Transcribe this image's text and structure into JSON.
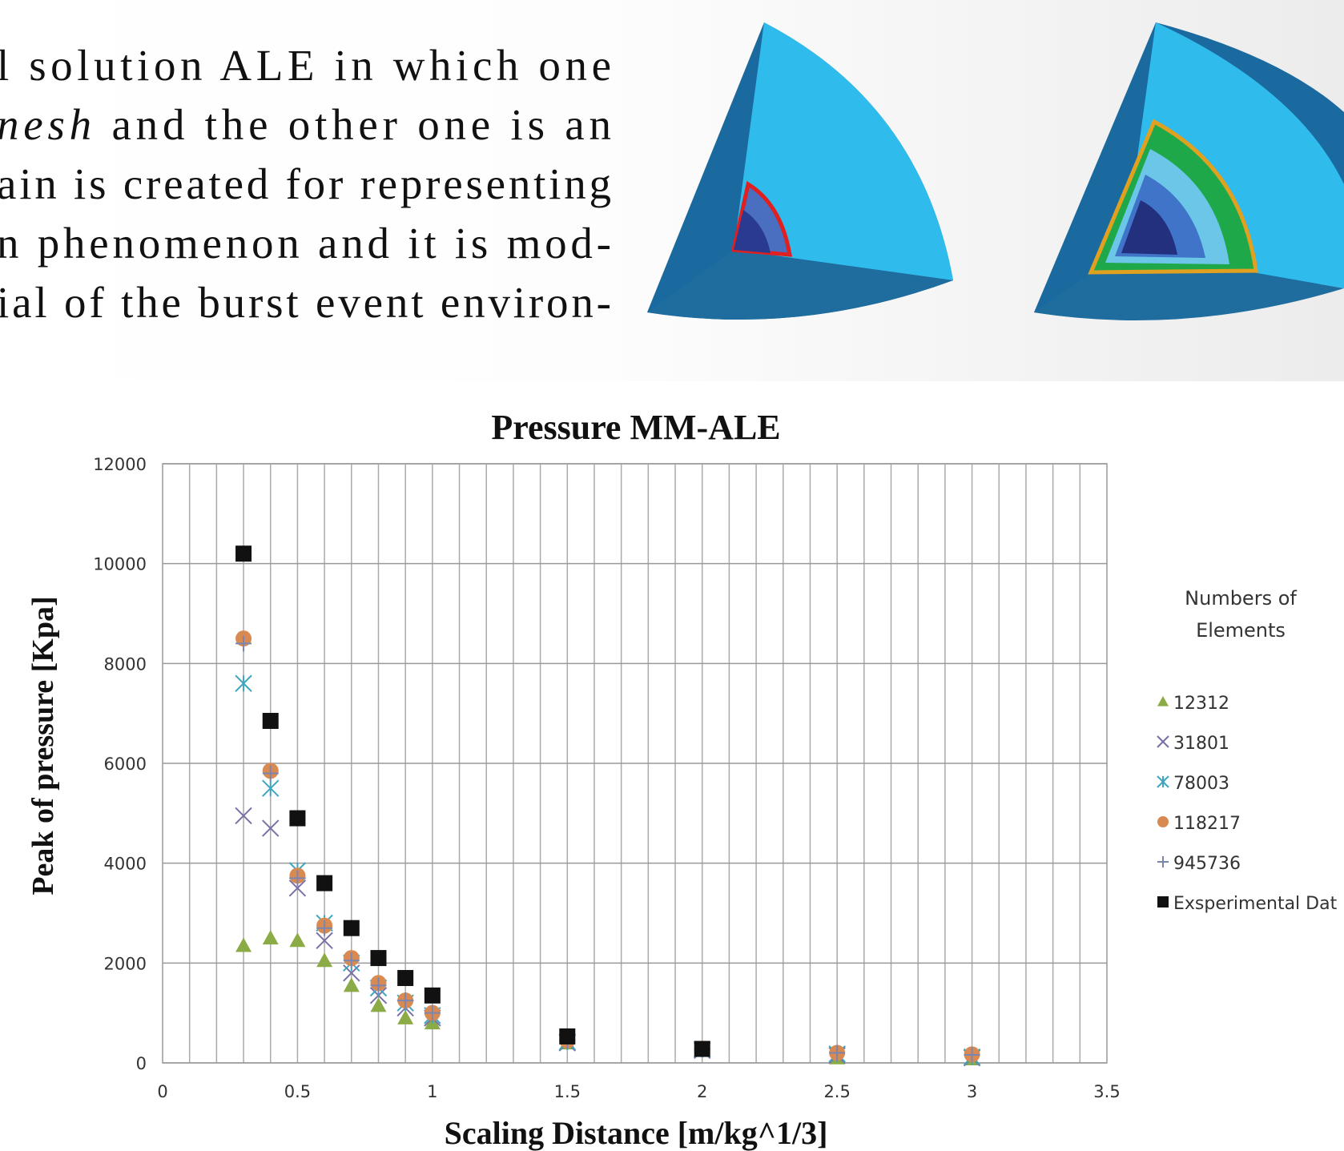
{
  "paragraph": [
    "l solution ALE in which one",
    [
      "nesh",
      " and the other one is an"
    ],
    "ain is created for representing",
    "n phenomenon and it is mod-",
    "ial of the burst event environ-"
  ],
  "chart_data": {
    "type": "scatter",
    "title": "Pressure MM-ALE",
    "x_label": "Scaling Distance [m/kg^1/3]",
    "y_label": "Peak of pressure [Kpa]",
    "xlim": [
      0,
      3.5
    ],
    "xticks": [
      0,
      0.5,
      1,
      1.5,
      2,
      2.5,
      3,
      3.5
    ],
    "xgrid": [
      0,
      0.1,
      0.2,
      0.3,
      0.4,
      0.5,
      0.6,
      0.7,
      0.8,
      0.9,
      1,
      1.1,
      1.2,
      1.3,
      1.4,
      1.5,
      1.6,
      1.7,
      1.8,
      1.9,
      2,
      2.1,
      2.2,
      2.3,
      2.4,
      2.5,
      2.6,
      2.7,
      2.8,
      2.9,
      3,
      3.1,
      3.2,
      3.3,
      3.4,
      3.5
    ],
    "ylim": [
      0,
      12000
    ],
    "yticks": [
      0,
      2000,
      4000,
      6000,
      8000,
      10000,
      12000
    ],
    "grid": true,
    "legend_title": [
      "Numbers of",
      "Elements"
    ],
    "x": [
      0.3,
      0.4,
      0.5,
      0.6,
      0.7,
      0.8,
      0.9,
      1,
      1.5,
      2,
      2.5,
      3
    ],
    "series": [
      {
        "name": "12312",
        "color": "#8aab45",
        "marker": "triangle",
        "values": [
          2350,
          2500,
          2450,
          2050,
          1550,
          1150,
          900,
          800,
          400,
          250,
          100,
          80
        ]
      },
      {
        "name": "31801",
        "color": "#7a70a8",
        "marker": "x",
        "values": [
          4950,
          4700,
          3500,
          2450,
          1800,
          1350,
          1100,
          900,
          400,
          250,
          150,
          100
        ]
      },
      {
        "name": "78003",
        "color": "#3fa6bf",
        "marker": "asterisk",
        "values": [
          7600,
          5500,
          3850,
          2800,
          2000,
          1500,
          1200,
          950,
          420,
          270,
          180,
          120
        ]
      },
      {
        "name": "118217",
        "color": "#d98a52",
        "marker": "circle",
        "values": [
          8500,
          5850,
          3750,
          2750,
          2100,
          1600,
          1250,
          1000,
          450,
          280,
          200,
          170
        ]
      },
      {
        "name": "945736",
        "color": "#7b86b0",
        "marker": "plus",
        "values": [
          8400,
          5800,
          3700,
          2700,
          2050,
          1550,
          1250,
          1000,
          450,
          280,
          200,
          160
        ]
      },
      {
        "name": "Exsperimental Dat",
        "color": "#111111",
        "marker": "square",
        "values": [
          10200,
          6850,
          4900,
          3600,
          2700,
          2100,
          1700,
          1350,
          530,
          280,
          null,
          null
        ]
      }
    ]
  }
}
